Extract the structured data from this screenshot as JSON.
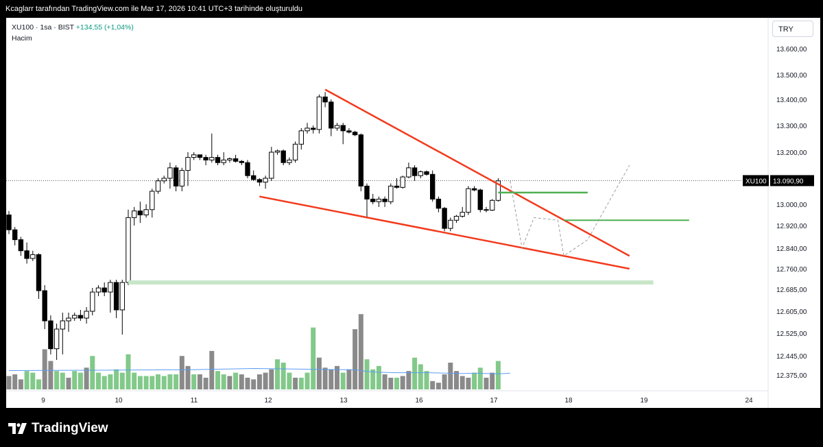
{
  "header": {
    "title": "Kcaglarr tarafından TradingView.com ile Mar 17, 2026 10:41 UTC+3 tarihinde oluşturuldu"
  },
  "legend": {
    "symbol": "XU100 · 1sa · BIST",
    "change": "+134,55 (+1,04%)",
    "volume_label": "Hacim"
  },
  "currency": "TRY",
  "footer": {
    "brand": "TradingView"
  },
  "chart_data": {
    "type": "candlestick",
    "price_axis_ticks": [
      "13.600,00",
      "13.500,00",
      "13.400,00",
      "13.300,00",
      "13.200,00",
      "13.090,90",
      "13.000,00",
      "12.920,00",
      "12.840,00",
      "12.760,00",
      "12.685,00",
      "12.605,00",
      "12.525,00",
      "12.445,00",
      "12.375,00"
    ],
    "time_axis_ticks": [
      "9",
      "10",
      "11",
      "12",
      "13",
      "16",
      "17",
      "18",
      "19",
      "24"
    ],
    "last_price_label": {
      "symbol": "XU100",
      "value": "13.090,90",
      "price": 13090.9
    },
    "ohlc": [
      [
        12960,
        12975,
        12890,
        12905
      ],
      [
        12905,
        12915,
        12850,
        12870
      ],
      [
        12870,
        12880,
        12810,
        12830
      ],
      [
        12830,
        12860,
        12780,
        12800
      ],
      [
        12800,
        12830,
        12790,
        12815
      ],
      [
        12815,
        12820,
        12650,
        12680
      ],
      [
        12680,
        12700,
        12540,
        12570
      ],
      [
        12570,
        12590,
        12450,
        12470
      ],
      [
        12470,
        12560,
        12430,
        12540
      ],
      [
        12540,
        12600,
        12450,
        12570
      ],
      [
        12570,
        12600,
        12530,
        12580
      ],
      [
        12580,
        12600,
        12570,
        12590
      ],
      [
        12590,
        12610,
        12570,
        12580
      ],
      [
        12580,
        12620,
        12560,
        12605
      ],
      [
        12605,
        12690,
        12590,
        12675
      ],
      [
        12675,
        12700,
        12660,
        12690
      ],
      [
        12690,
        12710,
        12660,
        12675
      ],
      [
        12675,
        12720,
        12600,
        12710
      ],
      [
        12710,
        12720,
        12580,
        12610
      ],
      [
        12610,
        12720,
        12520,
        12710
      ],
      [
        12710,
        12980,
        12700,
        12950
      ],
      [
        12950,
        12990,
        12920,
        12975
      ],
      [
        12975,
        13010,
        12930,
        12960
      ],
      [
        12960,
        13000,
        12950,
        12980
      ],
      [
        12980,
        13060,
        12950,
        13050
      ],
      [
        13050,
        13100,
        13040,
        13090
      ],
      [
        13090,
        13110,
        13080,
        13100
      ],
      [
        13100,
        13160,
        13060,
        13140
      ],
      [
        13140,
        13150,
        13050,
        13070
      ],
      [
        13070,
        13140,
        13050,
        13130
      ],
      [
        13130,
        13200,
        13070,
        13180
      ],
      [
        13180,
        13200,
        13170,
        13190
      ],
      [
        13190,
        13190,
        13170,
        13180
      ],
      [
        13180,
        13190,
        13150,
        13170
      ],
      [
        13170,
        13270,
        13160,
        13180
      ],
      [
        13180,
        13190,
        13150,
        13160
      ],
      [
        13160,
        13200,
        13150,
        13170
      ],
      [
        13170,
        13180,
        13160,
        13175
      ],
      [
        13175,
        13190,
        13160,
        13165
      ],
      [
        13165,
        13170,
        13150,
        13160
      ],
      [
        13160,
        13170,
        13100,
        13110
      ],
      [
        13110,
        13130,
        13090,
        13095
      ],
      [
        13095,
        13100,
        13070,
        13085
      ],
      [
        13085,
        13110,
        13060,
        13100
      ],
      [
        13100,
        13220,
        13090,
        13200
      ],
      [
        13200,
        13210,
        13190,
        13205
      ],
      [
        13205,
        13210,
        13150,
        13160
      ],
      [
        13160,
        13180,
        13150,
        13170
      ],
      [
        13170,
        13240,
        13160,
        13230
      ],
      [
        13230,
        13290,
        13210,
        13280
      ],
      [
        13280,
        13310,
        13270,
        13290
      ],
      [
        13290,
        13300,
        13270,
        13285
      ],
      [
        13285,
        13420,
        13270,
        13410
      ],
      [
        13410,
        13430,
        13370,
        13390
      ],
      [
        13390,
        13400,
        13260,
        13290
      ],
      [
        13290,
        13310,
        13280,
        13300
      ],
      [
        13300,
        13310,
        13230,
        13280
      ],
      [
        13280,
        13290,
        13270,
        13275
      ],
      [
        13275,
        13280,
        13260,
        13265
      ],
      [
        13265,
        13270,
        13050,
        13070
      ],
      [
        13070,
        13080,
        12950,
        13020
      ],
      [
        13020,
        13040,
        13000,
        13010
      ],
      [
        13010,
        13030,
        12990,
        13020
      ],
      [
        13020,
        13030,
        12990,
        13010
      ],
      [
        13010,
        13080,
        13000,
        13070
      ],
      [
        13070,
        13100,
        13060,
        13065
      ],
      [
        13065,
        13110,
        13060,
        13105
      ],
      [
        13105,
        13160,
        13100,
        13140
      ],
      [
        13140,
        13150,
        13090,
        13110
      ],
      [
        13110,
        13130,
        13100,
        13125
      ],
      [
        13125,
        13130,
        13110,
        13115
      ],
      [
        13115,
        13130,
        13010,
        13020
      ],
      [
        13020,
        13030,
        12970,
        12985
      ],
      [
        12985,
        12990,
        12900,
        12910
      ],
      [
        12910,
        12950,
        12900,
        12940
      ],
      [
        12940,
        12960,
        12930,
        12955
      ],
      [
        12955,
        12990,
        12950,
        12970
      ],
      [
        12970,
        13070,
        12960,
        13060
      ],
      [
        13060,
        13070,
        13050,
        13055
      ],
      [
        13055,
        13060,
        12970,
        12980
      ],
      [
        12980,
        12990,
        12970,
        12978
      ],
      [
        12978,
        13020,
        12975,
        13015
      ],
      [
        13015,
        13100,
        13010,
        13090
      ]
    ],
    "volume": [
      [
        16,
        "d"
      ],
      [
        18,
        "d"
      ],
      [
        12,
        "d"
      ],
      [
        22,
        "g"
      ],
      [
        20,
        "g"
      ],
      [
        12,
        "g"
      ],
      [
        48,
        "d"
      ],
      [
        34,
        "d"
      ],
      [
        22,
        "g"
      ],
      [
        20,
        "g"
      ],
      [
        14,
        "d"
      ],
      [
        22,
        "g"
      ],
      [
        20,
        "g"
      ],
      [
        26,
        "d"
      ],
      [
        40,
        "g"
      ],
      [
        20,
        "g"
      ],
      [
        16,
        "g"
      ],
      [
        18,
        "g"
      ],
      [
        24,
        "g"
      ],
      [
        20,
        "g"
      ],
      [
        42,
        "g"
      ],
      [
        20,
        "g"
      ],
      [
        16,
        "g"
      ],
      [
        16,
        "g"
      ],
      [
        16,
        "g"
      ],
      [
        18,
        "g"
      ],
      [
        16,
        "g"
      ],
      [
        18,
        "g"
      ],
      [
        18,
        "g"
      ],
      [
        40,
        "d"
      ],
      [
        28,
        "d"
      ],
      [
        18,
        "g"
      ],
      [
        18,
        "d"
      ],
      [
        14,
        "d"
      ],
      [
        46,
        "d"
      ],
      [
        22,
        "g"
      ],
      [
        18,
        "g"
      ],
      [
        16,
        "d"
      ],
      [
        20,
        "g"
      ],
      [
        18,
        "d"
      ],
      [
        14,
        "d"
      ],
      [
        12,
        "d"
      ],
      [
        18,
        "d"
      ],
      [
        20,
        "d"
      ],
      [
        24,
        "d"
      ],
      [
        36,
        "g"
      ],
      [
        32,
        "g"
      ],
      [
        20,
        "g"
      ],
      [
        14,
        "d"
      ],
      [
        14,
        "g"
      ],
      [
        20,
        "g"
      ],
      [
        74,
        "g"
      ],
      [
        38,
        "d"
      ],
      [
        26,
        "d"
      ],
      [
        24,
        "d"
      ],
      [
        28,
        "d"
      ],
      [
        20,
        "g"
      ],
      [
        24,
        "d"
      ],
      [
        72,
        "d"
      ],
      [
        90,
        "d"
      ],
      [
        36,
        "g"
      ],
      [
        24,
        "g"
      ],
      [
        28,
        "g"
      ],
      [
        18,
        "d"
      ],
      [
        14,
        "d"
      ],
      [
        14,
        "g"
      ],
      [
        16,
        "d"
      ],
      [
        22,
        "d"
      ],
      [
        38,
        "g"
      ],
      [
        30,
        "g"
      ],
      [
        22,
        "g"
      ],
      [
        10,
        "d"
      ],
      [
        8,
        "d"
      ],
      [
        18,
        "d"
      ],
      [
        32,
        "d"
      ],
      [
        22,
        "d"
      ],
      [
        16,
        "d"
      ],
      [
        14,
        "d"
      ],
      [
        20,
        "g"
      ],
      [
        26,
        "g"
      ],
      [
        14,
        "d"
      ],
      [
        20,
        "d"
      ],
      [
        34,
        "g"
      ]
    ],
    "volume_ma": [
      [
        0,
        45
      ],
      [
        15,
        46
      ],
      [
        30,
        47
      ],
      [
        41,
        50
      ],
      [
        52,
        48
      ],
      [
        58,
        47
      ],
      [
        60,
        43
      ],
      [
        62,
        41
      ],
      [
        65,
        40
      ],
      [
        70,
        40
      ],
      [
        76,
        38
      ],
      [
        78,
        39
      ],
      [
        82,
        37
      ],
      [
        84,
        39
      ]
    ],
    "drawings": {
      "wedge_upper": [
        [
          53,
          13440
        ],
        [
          104,
          12810
        ]
      ],
      "wedge_lower": [
        [
          42,
          13030
        ],
        [
          104,
          12760
        ]
      ],
      "support_zone": [
        [
          20,
          12710
        ],
        [
          108,
          12705
        ]
      ],
      "level_green_1": [
        [
          82,
          13045
        ],
        [
          97,
          13045
        ]
      ],
      "level_green_2": [
        [
          93,
          12940
        ],
        [
          114,
          12940
        ]
      ],
      "projection_dashes": [
        [
          [
            84,
            13090
          ],
          [
            86,
            12840
          ],
          [
            88,
            12950
          ],
          [
            92,
            12940
          ],
          [
            93,
            12810
          ],
          [
            97,
            12870
          ],
          [
            104,
            13150
          ]
        ]
      ]
    }
  }
}
